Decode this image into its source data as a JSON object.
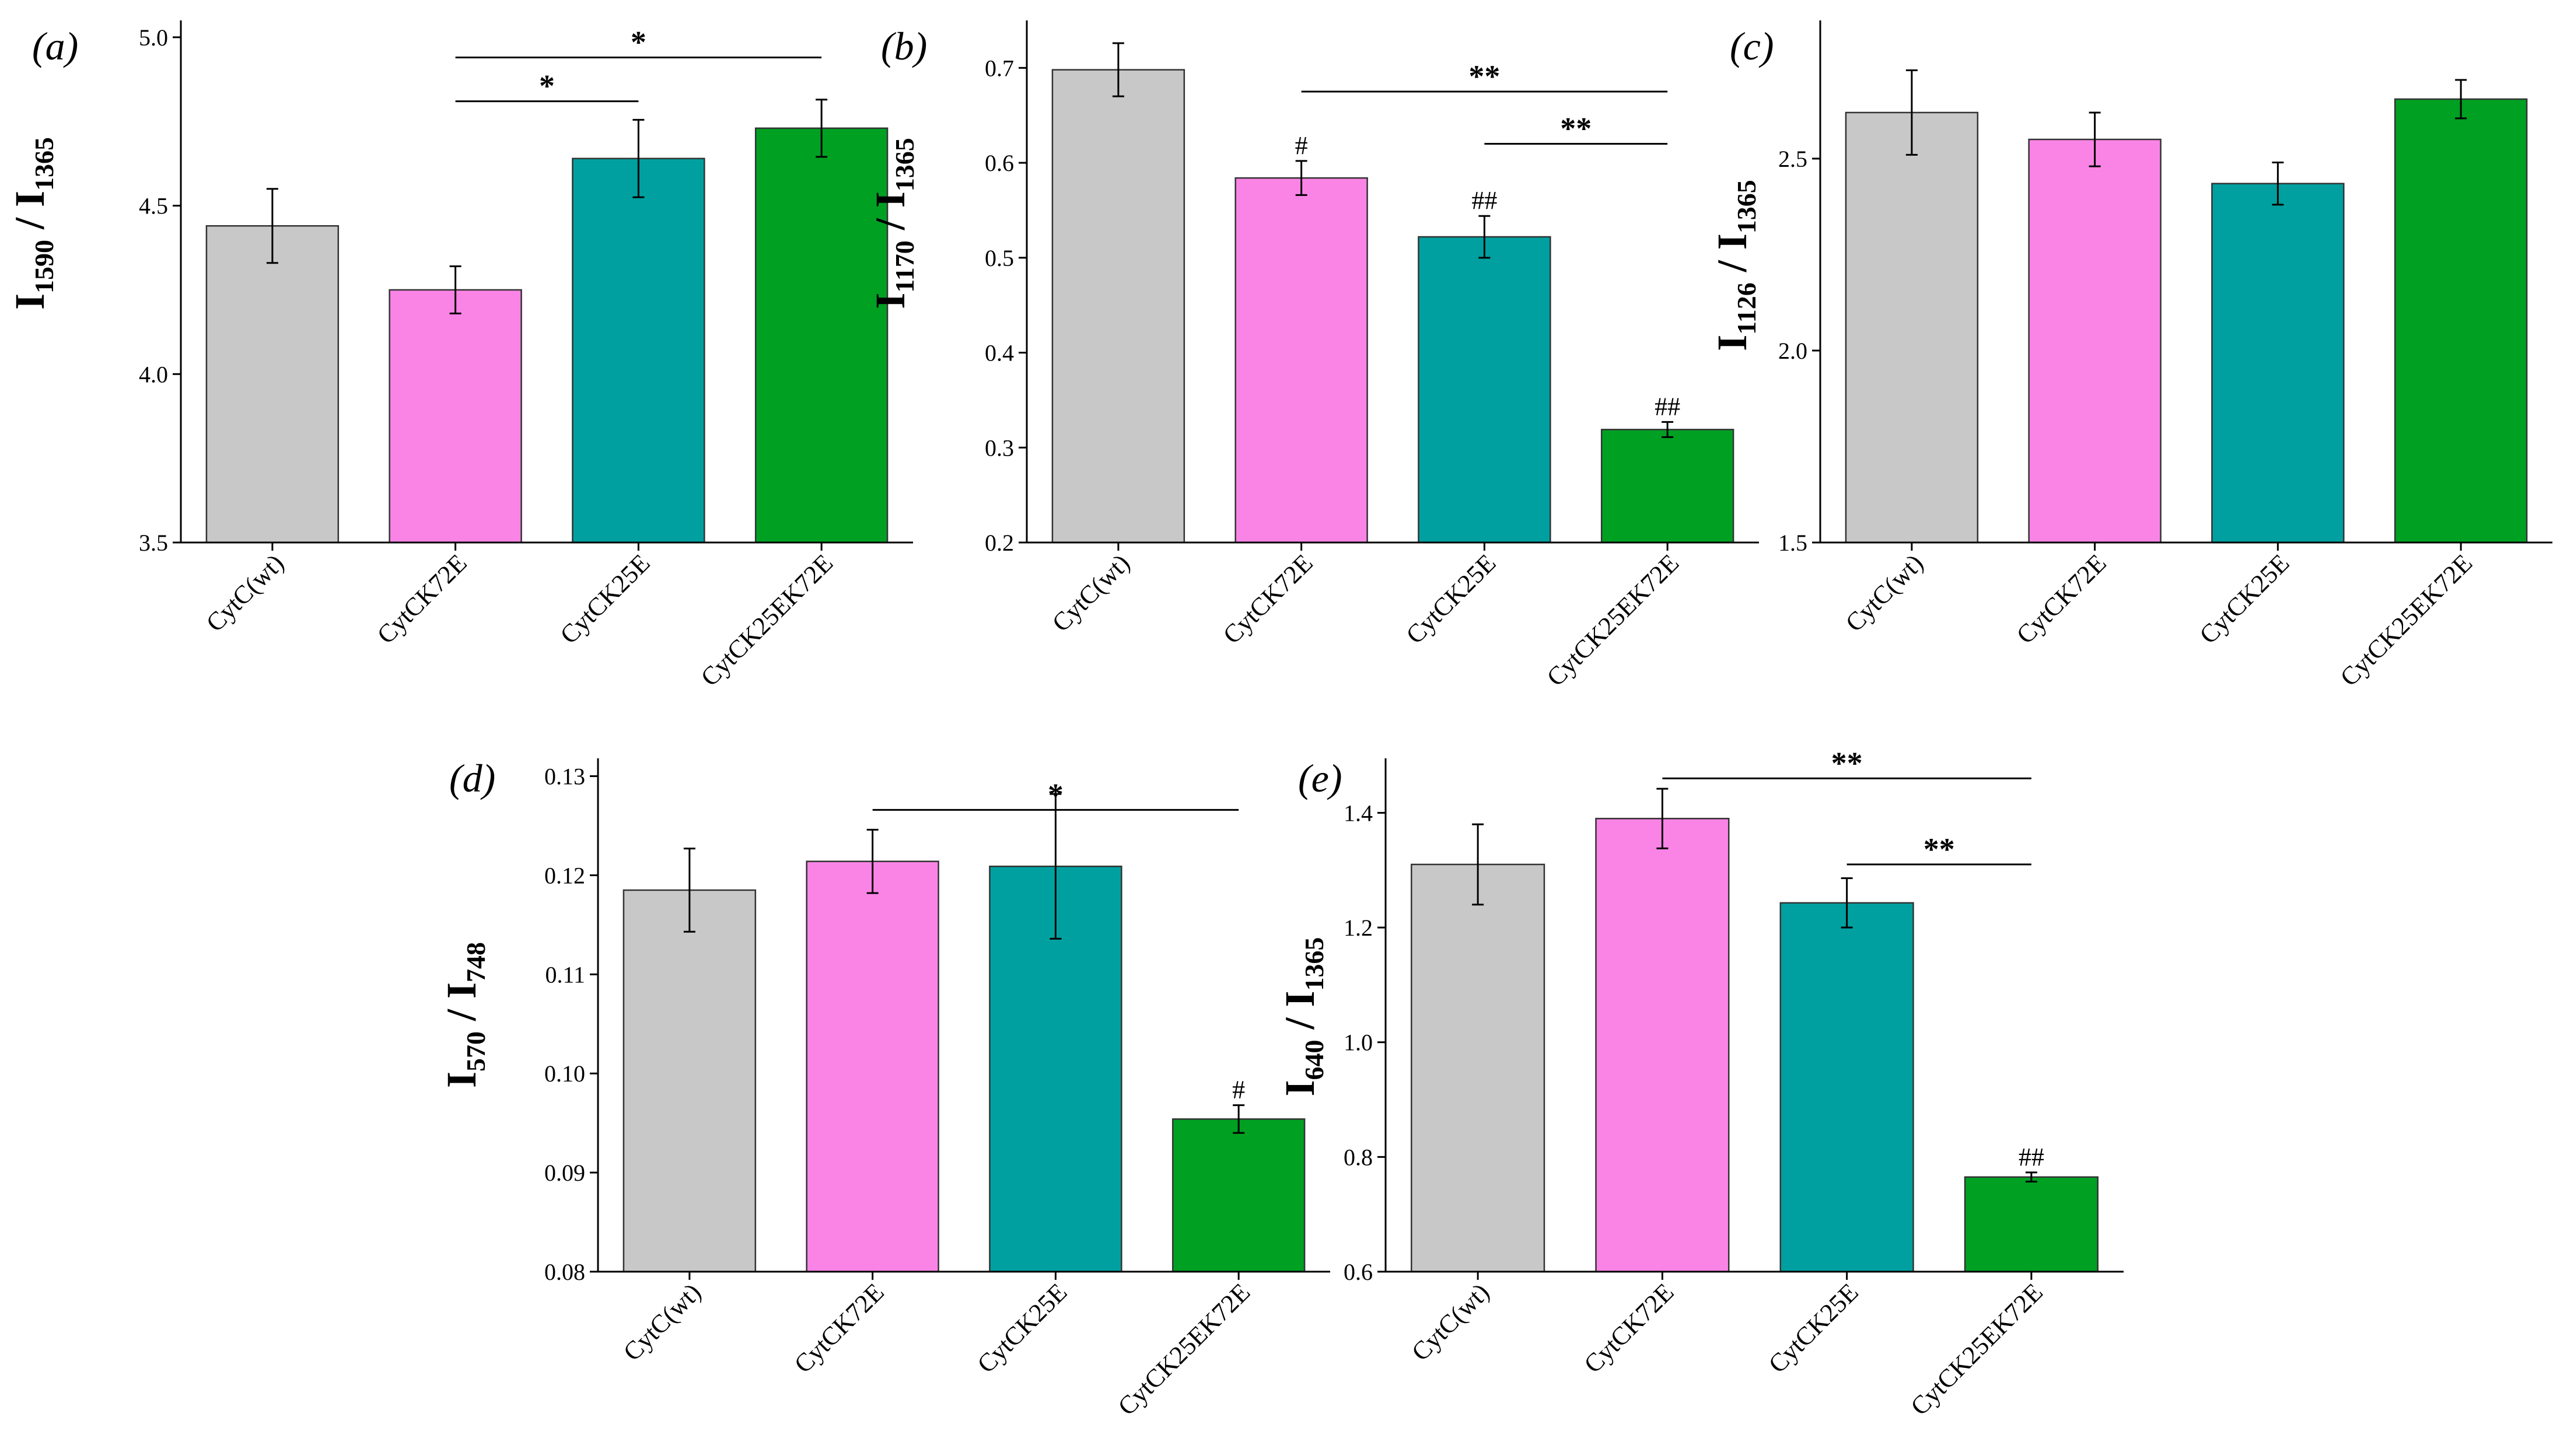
{
  "colors": {
    "CytC(wt)": "#c8c8c8",
    "CytCK72E": "#fa84e6",
    "CytCK25E": "#00a0a0",
    "CytCK25EK72E": "#00a023"
  },
  "chart_data": [
    {
      "id": "a",
      "type": "bar",
      "panel_label": "(a)",
      "ylabel": {
        "main": "I",
        "sub1": "1590",
        "sep": " / I",
        "sub2": "1365"
      },
      "categories": [
        "CytC(wt)",
        "CytCK72E",
        "CytCK25E",
        "CytCK25EK72E"
      ],
      "values": [
        4.44,
        4.25,
        4.64,
        4.73
      ],
      "errors": [
        0.11,
        0.07,
        0.115,
        0.085
      ],
      "ylim": [
        3.5,
        5.05
      ],
      "yticks": [
        3.5,
        4.0,
        4.5,
        5.0
      ],
      "tick_format": 1,
      "bar_marks": [],
      "brackets": [
        {
          "from": 1,
          "to": 3,
          "label": "*",
          "y": 4.94
        },
        {
          "from": 1,
          "to": 2,
          "label": "*",
          "y": 4.81
        }
      ]
    },
    {
      "id": "b",
      "type": "bar",
      "panel_label": "(b)",
      "ylabel": {
        "main": "I",
        "sub1": "1170",
        "sep": " / I",
        "sub2": "1365"
      },
      "categories": [
        "CytC(wt)",
        "CytCK72E",
        "CytCK25E",
        "CytCK25EK72E"
      ],
      "values": [
        0.698,
        0.584,
        0.522,
        0.319
      ],
      "errors": [
        0.028,
        0.018,
        0.022,
        0.008
      ],
      "ylim": [
        0.2,
        0.75
      ],
      "yticks": [
        0.2,
        0.3,
        0.4,
        0.5,
        0.6,
        0.7
      ],
      "tick_format": 1,
      "bar_marks": [
        {
          "index": 1,
          "label": "#"
        },
        {
          "index": 2,
          "label": "##"
        },
        {
          "index": 3,
          "label": "##"
        }
      ],
      "brackets": [
        {
          "from": 1,
          "to": 3,
          "label": "**",
          "y": 0.675
        },
        {
          "from": 2,
          "to": 3,
          "label": "**",
          "y": 0.62
        }
      ]
    },
    {
      "id": "c",
      "type": "bar",
      "panel_label": "(c)",
      "ylabel": {
        "main": "I",
        "sub1": "1126",
        "sep": " / I",
        "sub2": "1365"
      },
      "categories": [
        "CytC(wt)",
        "CytCK72E",
        "CytCK25E",
        "CytCK25EK72E"
      ],
      "values": [
        2.62,
        2.55,
        2.435,
        2.655
      ],
      "errors": [
        0.11,
        0.07,
        0.055,
        0.05
      ],
      "ylim": [
        1.5,
        2.86
      ],
      "yticks": [
        1.5,
        2.0,
        2.5
      ],
      "tick_format": 1,
      "bar_marks": [],
      "brackets": []
    },
    {
      "id": "d",
      "type": "bar",
      "panel_label": "(d)",
      "ylabel": {
        "main": "I",
        "sub1": "570",
        "sep": " / I",
        "sub2": "748"
      },
      "categories": [
        "CytC(wt)",
        "CytCK72E",
        "CytCK25E",
        "CytCK25EK72E"
      ],
      "values": [
        0.1185,
        0.1214,
        0.1209,
        0.0954
      ],
      "errors": [
        0.0042,
        0.0032,
        0.0073,
        0.0014
      ],
      "ylim": [
        0.08,
        0.1318
      ],
      "yticks": [
        0.08,
        0.09,
        0.1,
        0.11,
        0.12,
        0.13
      ],
      "tick_format": 2,
      "bar_marks": [
        {
          "index": 3,
          "label": "#"
        }
      ],
      "brackets": [
        {
          "from": 1,
          "to": 3,
          "label": "*",
          "y": 0.1266
        }
      ]
    },
    {
      "id": "e",
      "type": "bar",
      "panel_label": "(e)",
      "ylabel": {
        "main": "I",
        "sub1": "640",
        "sep": " / I",
        "sub2": "1365"
      },
      "categories": [
        "CytC(wt)",
        "CytCK72E",
        "CytCK25E",
        "CytCK25EK72E"
      ],
      "values": [
        1.31,
        1.39,
        1.243,
        0.765
      ],
      "errors": [
        0.07,
        0.052,
        0.043,
        0.008
      ],
      "ylim": [
        0.6,
        1.495
      ],
      "yticks": [
        0.6,
        0.8,
        1.0,
        1.2,
        1.4
      ],
      "tick_format": 1,
      "bar_marks": [
        {
          "index": 3,
          "label": "##"
        }
      ],
      "brackets": [
        {
          "from": 1,
          "to": 3,
          "label": "**",
          "y": 1.46
        },
        {
          "from": 2,
          "to": 3,
          "label": "**",
          "y": 1.31
        }
      ]
    }
  ]
}
